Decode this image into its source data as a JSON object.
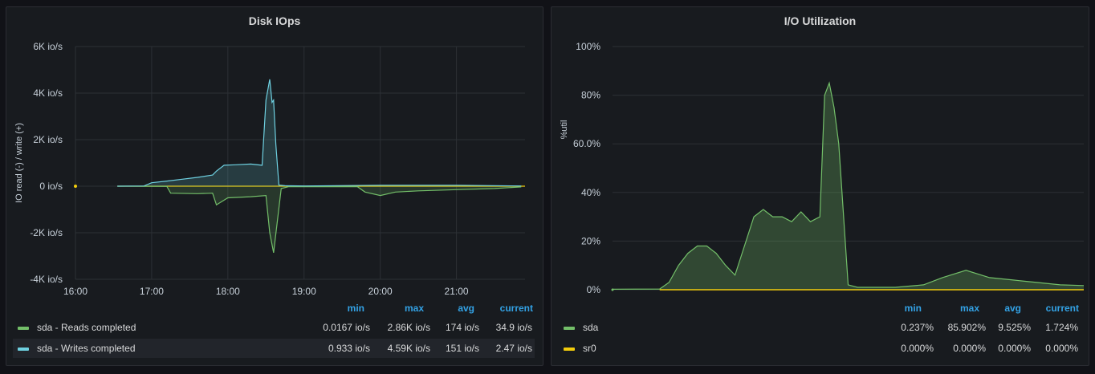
{
  "panels": {
    "left": {
      "title": "Disk IOps",
      "y_axis_label": "IO read (-) / write (+)",
      "columns": [
        "min",
        "max",
        "avg",
        "current"
      ],
      "legend": [
        {
          "name": "sda - Reads completed",
          "color": "#73bf69",
          "min": "0.0167 io/s",
          "max": "2.86K io/s",
          "avg": "174 io/s",
          "current": "34.9 io/s"
        },
        {
          "name": "sda - Writes completed",
          "color": "#6ed0e0",
          "min": "0.933 io/s",
          "max": "4.59K io/s",
          "avg": "151 io/s",
          "current": "2.47 io/s"
        }
      ]
    },
    "right": {
      "title": "I/O Utilization",
      "y_axis_label": "%util",
      "columns": [
        "min",
        "max",
        "avg",
        "current"
      ],
      "legend": [
        {
          "name": "sda",
          "color": "#73bf69",
          "min": "0.237%",
          "max": "85.902%",
          "avg": "9.525%",
          "current": "1.724%"
        },
        {
          "name": "sr0",
          "color": "#f2cc0c",
          "min": "0.000%",
          "max": "0.000%",
          "avg": "0.000%",
          "current": "0.000%"
        }
      ]
    }
  },
  "chart_data": [
    {
      "type": "area",
      "title": "Disk IOps",
      "ylabel": "IO read (-) / write (+)",
      "x_ticks": [
        "16:00",
        "17:00",
        "18:00",
        "19:00",
        "20:00",
        "21:00"
      ],
      "y_ticks": [
        "6K io/s",
        "4K io/s",
        "2K io/s",
        "0 io/s",
        "-2K io/s",
        "-4K io/s"
      ],
      "xlim": [
        16.0,
        21.9
      ],
      "ylim": [
        -4000,
        6000
      ],
      "grid": true,
      "series": [
        {
          "name": "sda - Writes completed",
          "color": "#6ed0e0",
          "x": [
            16.55,
            16.9,
            17.0,
            17.2,
            17.4,
            17.6,
            17.8,
            17.85,
            17.95,
            18.1,
            18.3,
            18.45,
            18.5,
            18.55,
            18.58,
            18.6,
            18.63,
            18.67,
            18.75,
            19.0,
            20.0,
            21.0,
            21.85
          ],
          "y": [
            0,
            10,
            150,
            220,
            300,
            380,
            480,
            650,
            900,
            920,
            950,
            900,
            3700,
            4590,
            3600,
            3700,
            1800,
            50,
            20,
            10,
            40,
            40,
            10
          ]
        },
        {
          "name": "sda - Reads completed",
          "color": "#73bf69",
          "x": [
            16.55,
            17.2,
            17.25,
            17.6,
            17.8,
            17.85,
            18.0,
            18.3,
            18.5,
            18.55,
            18.6,
            18.65,
            18.7,
            18.8,
            19.7,
            19.8,
            20.0,
            20.2,
            20.5,
            21.0,
            21.5,
            21.85
          ],
          "y": [
            0,
            -10,
            -300,
            -320,
            -300,
            -800,
            -500,
            -450,
            -400,
            -2000,
            -2860,
            -1500,
            -100,
            -20,
            -20,
            -250,
            -400,
            -250,
            -200,
            -150,
            -100,
            -30
          ]
        }
      ]
    },
    {
      "type": "area",
      "title": "I/O Utilization",
      "ylabel": "%util",
      "y_ticks": [
        "100%",
        "80%",
        "60.0%",
        "40%",
        "20%",
        "0%"
      ],
      "ylim": [
        0,
        100
      ],
      "grid": true,
      "series": [
        {
          "name": "sda",
          "color": "#73bf69",
          "x": [
            0,
            10,
            12,
            14,
            16,
            18,
            20,
            22,
            24,
            26,
            30,
            32,
            34,
            36,
            38,
            40,
            42,
            44,
            45,
            46,
            47,
            48,
            50,
            52,
            60,
            66,
            70,
            75,
            80,
            85,
            90,
            95,
            100
          ],
          "y": [
            0.2,
            0.3,
            3,
            10,
            15,
            18,
            18,
            15,
            10,
            6,
            30,
            33,
            30,
            30,
            28,
            32,
            28,
            30,
            80,
            85,
            75,
            60,
            2,
            1,
            1,
            2,
            5,
            8,
            5,
            4,
            3,
            2,
            1.7
          ]
        },
        {
          "name": "sr0",
          "color": "#f2cc0c",
          "x": [
            10,
            100
          ],
          "y": [
            0,
            0
          ]
        }
      ]
    }
  ]
}
